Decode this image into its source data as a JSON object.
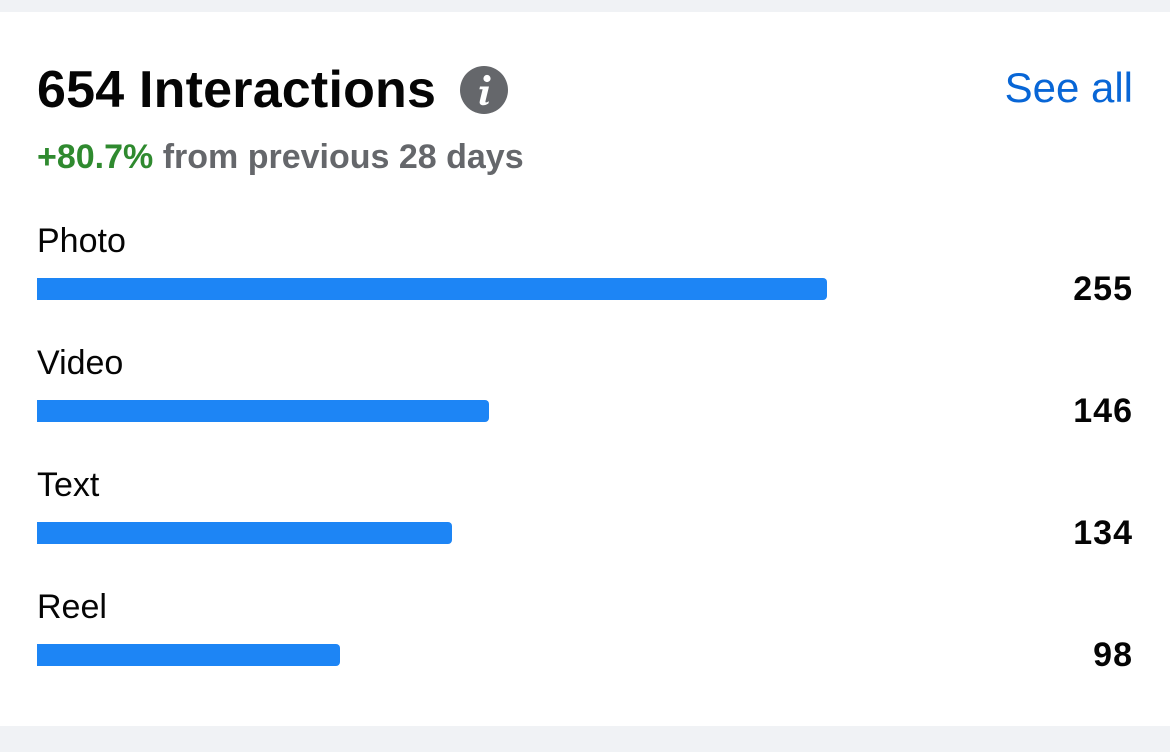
{
  "header": {
    "title": "654 Interactions",
    "see_all": "See all",
    "info_icon": "info-icon"
  },
  "subtitle": {
    "change": "+80.7%",
    "suffix": " from previous 28 days",
    "change_color": "#2f8a2f"
  },
  "chart_data": {
    "type": "bar",
    "categories": [
      "Photo",
      "Video",
      "Text",
      "Reel"
    ],
    "values": [
      255,
      146,
      134,
      98
    ],
    "xlim": [
      0,
      310
    ]
  },
  "rows": [
    {
      "label": "Photo",
      "value": "255"
    },
    {
      "label": "Video",
      "value": "146"
    },
    {
      "label": "Text",
      "value": "134"
    },
    {
      "label": "Reel",
      "value": "98"
    }
  ],
  "colors": {
    "bar": "#1d85f5",
    "link": "#0866d6"
  }
}
